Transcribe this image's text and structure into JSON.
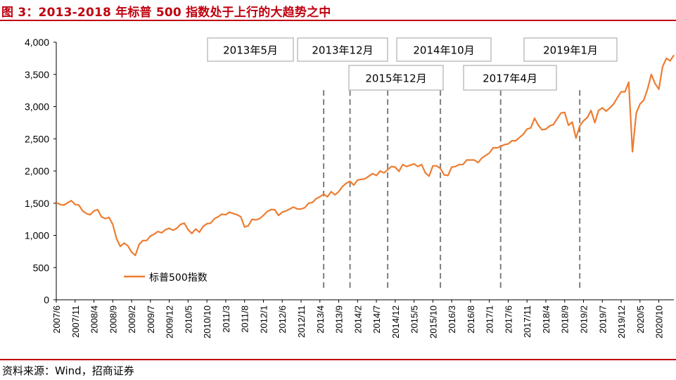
{
  "title": "图 3：2013-2018 年标普 500 指数处于上行的大趋势之中",
  "source": "资料来源：Wind，招商证券",
  "colors": {
    "title": "#c0000f",
    "series": "#ed7d31",
    "vline": "#7f7f7f",
    "box_border": "#bfbfbf"
  },
  "chart_data": {
    "type": "line",
    "ylim": [
      0,
      4000
    ],
    "yticks": [
      0,
      500,
      1000,
      1500,
      2000,
      2500,
      3000,
      3500,
      4000
    ],
    "ytick_labels": [
      "0",
      "500",
      "1,000",
      "1,500",
      "2,000",
      "2,500",
      "3,000",
      "3,500",
      "4,000"
    ],
    "x_range": [
      "2007/6",
      "2021/2"
    ],
    "xtick_labels": [
      "2007/6",
      "2007/11",
      "2008/4",
      "2008/9",
      "2009/2",
      "2009/7",
      "2009/12",
      "2010/5",
      "2010/10",
      "2011/3",
      "2011/8",
      "2012/1",
      "2012/6",
      "2012/11",
      "2013/4",
      "2013/9",
      "2014/2",
      "2014/7",
      "2014/12",
      "2015/5",
      "2015/10",
      "2016/3",
      "2016/8",
      "2017/1",
      "2017/6",
      "2017/11",
      "2018/4",
      "2018/9",
      "2019/2",
      "2019/7",
      "2019/12",
      "2020/5",
      "2020/10"
    ],
    "legend": "标普500指数",
    "series": [
      {
        "name": "标普500指数",
        "points": [
          [
            "2007/6",
            1510
          ],
          [
            "2007/7",
            1480
          ],
          [
            "2007/8",
            1470
          ],
          [
            "2007/10",
            1540
          ],
          [
            "2007/11",
            1480
          ],
          [
            "2007/12",
            1470
          ],
          [
            "2008/1",
            1380
          ],
          [
            "2008/2",
            1340
          ],
          [
            "2008/3",
            1320
          ],
          [
            "2008/4",
            1380
          ],
          [
            "2008/5",
            1400
          ],
          [
            "2008/6",
            1290
          ],
          [
            "2008/7",
            1260
          ],
          [
            "2008/8",
            1280
          ],
          [
            "2008/9",
            1170
          ],
          [
            "2008/10",
            950
          ],
          [
            "2008/11",
            830
          ],
          [
            "2008/12",
            880
          ],
          [
            "2009/1",
            840
          ],
          [
            "2009/2",
            740
          ],
          [
            "2009/3",
            690
          ],
          [
            "2009/4",
            860
          ],
          [
            "2009/5",
            920
          ],
          [
            "2009/6",
            920
          ],
          [
            "2009/7",
            990
          ],
          [
            "2009/8",
            1020
          ],
          [
            "2009/9",
            1060
          ],
          [
            "2009/10",
            1040
          ],
          [
            "2009/11",
            1090
          ],
          [
            "2009/12",
            1110
          ],
          [
            "2010/1",
            1080
          ],
          [
            "2010/2",
            1110
          ],
          [
            "2010/3",
            1170
          ],
          [
            "2010/4",
            1190
          ],
          [
            "2010/5",
            1090
          ],
          [
            "2010/6",
            1030
          ],
          [
            "2010/7",
            1100
          ],
          [
            "2010/8",
            1050
          ],
          [
            "2010/9",
            1140
          ],
          [
            "2010/10",
            1180
          ],
          [
            "2010/11",
            1190
          ],
          [
            "2010/12",
            1260
          ],
          [
            "2011/1",
            1290
          ],
          [
            "2011/2",
            1330
          ],
          [
            "2011/3",
            1320
          ],
          [
            "2011/4",
            1360
          ],
          [
            "2011/5",
            1340
          ],
          [
            "2011/6",
            1320
          ],
          [
            "2011/7",
            1290
          ],
          [
            "2011/8",
            1130
          ],
          [
            "2011/9",
            1150
          ],
          [
            "2011/10",
            1250
          ],
          [
            "2011/11",
            1240
          ],
          [
            "2011/12",
            1260
          ],
          [
            "2012/1",
            1310
          ],
          [
            "2012/2",
            1370
          ],
          [
            "2012/3",
            1400
          ],
          [
            "2012/4",
            1400
          ],
          [
            "2012/5",
            1310
          ],
          [
            "2012/6",
            1360
          ],
          [
            "2012/7",
            1380
          ],
          [
            "2012/8",
            1410
          ],
          [
            "2012/9",
            1440
          ],
          [
            "2012/10",
            1410
          ],
          [
            "2012/11",
            1410
          ],
          [
            "2012/12",
            1430
          ],
          [
            "2013/1",
            1500
          ],
          [
            "2013/2",
            1510
          ],
          [
            "2013/3",
            1570
          ],
          [
            "2013/4",
            1600
          ],
          [
            "2013/5",
            1640
          ],
          [
            "2013/6",
            1600
          ],
          [
            "2013/7",
            1680
          ],
          [
            "2013/8",
            1630
          ],
          [
            "2013/9",
            1680
          ],
          [
            "2013/10",
            1760
          ],
          [
            "2013/11",
            1810
          ],
          [
            "2013/12",
            1840
          ],
          [
            "2014/1",
            1780
          ],
          [
            "2014/2",
            1860
          ],
          [
            "2014/3",
            1870
          ],
          [
            "2014/4",
            1880
          ],
          [
            "2014/5",
            1920
          ],
          [
            "2014/6",
            1960
          ],
          [
            "2014/7",
            1930
          ],
          [
            "2014/8",
            2000
          ],
          [
            "2014/9",
            1970
          ],
          [
            "2014/10",
            2020
          ],
          [
            "2014/11",
            2070
          ],
          [
            "2014/12",
            2060
          ],
          [
            "2015/1",
            1995
          ],
          [
            "2015/2",
            2100
          ],
          [
            "2015/3",
            2070
          ],
          [
            "2015/4",
            2090
          ],
          [
            "2015/5",
            2110
          ],
          [
            "2015/6",
            2070
          ],
          [
            "2015/7",
            2100
          ],
          [
            "2015/8",
            1970
          ],
          [
            "2015/9",
            1920
          ],
          [
            "2015/10",
            2080
          ],
          [
            "2015/11",
            2080
          ],
          [
            "2015/12",
            2040
          ],
          [
            "2016/1",
            1940
          ],
          [
            "2016/2",
            1930
          ],
          [
            "2016/3",
            2060
          ],
          [
            "2016/4",
            2070
          ],
          [
            "2016/5",
            2100
          ],
          [
            "2016/6",
            2100
          ],
          [
            "2016/7",
            2170
          ],
          [
            "2016/8",
            2170
          ],
          [
            "2016/9",
            2170
          ],
          [
            "2016/10",
            2130
          ],
          [
            "2016/11",
            2200
          ],
          [
            "2016/12",
            2240
          ],
          [
            "2017/1",
            2280
          ],
          [
            "2017/2",
            2360
          ],
          [
            "2017/3",
            2360
          ],
          [
            "2017/4",
            2380
          ],
          [
            "2017/5",
            2410
          ],
          [
            "2017/6",
            2420
          ],
          [
            "2017/7",
            2470
          ],
          [
            "2017/8",
            2470
          ],
          [
            "2017/9",
            2520
          ],
          [
            "2017/10",
            2570
          ],
          [
            "2017/11",
            2650
          ],
          [
            "2017/12",
            2670
          ],
          [
            "2018/1",
            2820
          ],
          [
            "2018/2",
            2710
          ],
          [
            "2018/3",
            2640
          ],
          [
            "2018/4",
            2650
          ],
          [
            "2018/5",
            2700
          ],
          [
            "2018/6",
            2720
          ],
          [
            "2018/7",
            2810
          ],
          [
            "2018/8",
            2900
          ],
          [
            "2018/9",
            2910
          ],
          [
            "2018/10",
            2710
          ],
          [
            "2018/11",
            2760
          ],
          [
            "2018/12",
            2510
          ],
          [
            "2019/1",
            2700
          ],
          [
            "2019/2",
            2780
          ],
          [
            "2019/3",
            2830
          ],
          [
            "2019/4",
            2940
          ],
          [
            "2019/5",
            2750
          ],
          [
            "2019/6",
            2940
          ],
          [
            "2019/7",
            2980
          ],
          [
            "2019/8",
            2930
          ],
          [
            "2019/9",
            2980
          ],
          [
            "2019/10",
            3040
          ],
          [
            "2019/11",
            3140
          ],
          [
            "2019/12",
            3230
          ],
          [
            "2020/1",
            3230
          ],
          [
            "2020/2",
            3380
          ],
          [
            "2020/3",
            2300
          ],
          [
            "2020/4",
            2900
          ],
          [
            "2020/5",
            3040
          ],
          [
            "2020/6",
            3100
          ],
          [
            "2020/7",
            3270
          ],
          [
            "2020/8",
            3500
          ],
          [
            "2020/9",
            3360
          ],
          [
            "2020/10",
            3270
          ],
          [
            "2020/11",
            3620
          ],
          [
            "2020/12",
            3750
          ],
          [
            "2021/1",
            3710
          ],
          [
            "2021/2",
            3800
          ]
        ]
      }
    ],
    "annotations": [
      {
        "label": "2013年5月",
        "date": "2013/5"
      },
      {
        "label": "2013年12月",
        "date": "2013/12"
      },
      {
        "label": "2014年10月",
        "date": "2014/10"
      },
      {
        "label": "2015年12月",
        "date": "2015/12"
      },
      {
        "label": "2017年4月",
        "date": "2017/4"
      },
      {
        "label": "2019年1月",
        "date": "2019/1"
      }
    ]
  }
}
